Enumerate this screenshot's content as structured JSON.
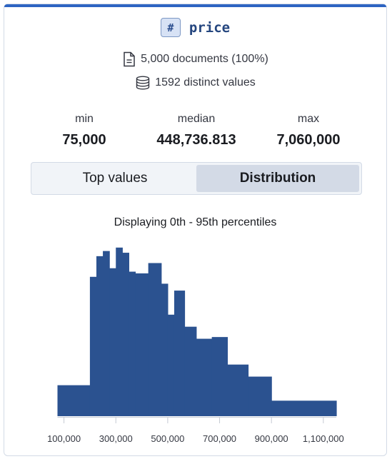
{
  "field": {
    "type_icon": "#",
    "name": "price"
  },
  "docs_text": "5,000 documents (100%)",
  "distinct_text": "1592 distinct values",
  "stats": {
    "min_label": "min",
    "min_value": "75,000",
    "median_label": "median",
    "median_value": "448,736.813",
    "max_label": "max",
    "max_value": "7,060,000"
  },
  "tabs": [
    {
      "label": "Top values",
      "active": false
    },
    {
      "label": "Distribution",
      "active": true
    }
  ],
  "caption": "Displaying 0th - 95th percentiles",
  "colors": {
    "accent": "#2d64c2",
    "bar": "#2b5290"
  },
  "icons": {
    "docs": "document-icon",
    "distinct": "database-icon"
  },
  "chart_data": {
    "type": "bar",
    "title": "Displaying 0th - 95th percentiles",
    "xlabel": "",
    "ylabel": "",
    "xlim": [
      75000,
      1150000
    ],
    "ylim": [
      0,
      10
    ],
    "x_ticks": [
      100000,
      300000,
      500000,
      700000,
      900000,
      1100000
    ],
    "x_tick_labels": [
      "100,000",
      "300,000",
      "500,000",
      "700,000",
      "900,000",
      "1,100,000"
    ],
    "grid": false,
    "bins": [
      {
        "start": 75000,
        "end": 200000,
        "value": 1.8
      },
      {
        "start": 200000,
        "end": 225000,
        "value": 8.1
      },
      {
        "start": 225000,
        "end": 250000,
        "value": 9.3
      },
      {
        "start": 250000,
        "end": 275000,
        "value": 9.6
      },
      {
        "start": 275000,
        "end": 300000,
        "value": 8.6
      },
      {
        "start": 300000,
        "end": 325000,
        "value": 9.8
      },
      {
        "start": 325000,
        "end": 350000,
        "value": 9.5
      },
      {
        "start": 350000,
        "end": 375000,
        "value": 8.4
      },
      {
        "start": 375000,
        "end": 425000,
        "value": 8.3
      },
      {
        "start": 425000,
        "end": 475000,
        "value": 8.9
      },
      {
        "start": 475000,
        "end": 500000,
        "value": 7.7
      },
      {
        "start": 500000,
        "end": 525000,
        "value": 5.9
      },
      {
        "start": 525000,
        "end": 565000,
        "value": 7.3
      },
      {
        "start": 565000,
        "end": 610000,
        "value": 5.2
      },
      {
        "start": 610000,
        "end": 670000,
        "value": 4.5
      },
      {
        "start": 670000,
        "end": 730000,
        "value": 4.6
      },
      {
        "start": 730000,
        "end": 810000,
        "value": 3.0
      },
      {
        "start": 810000,
        "end": 900000,
        "value": 2.3
      },
      {
        "start": 900000,
        "end": 1150000,
        "value": 0.9
      }
    ]
  }
}
